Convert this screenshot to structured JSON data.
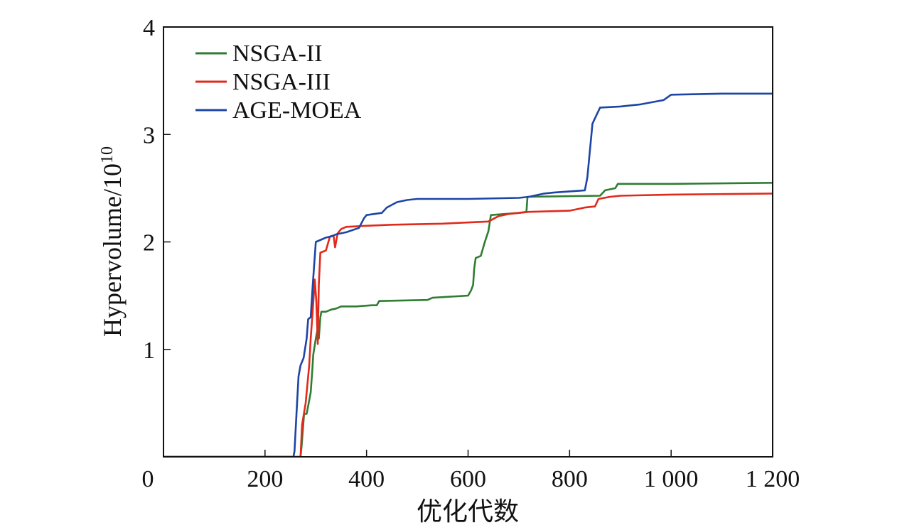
{
  "chart_data": {
    "type": "line",
    "title": "",
    "xlabel": "优化代数",
    "ylabel_base": "Hypervolume/10",
    "ylabel_exp": "10",
    "xlim": [
      0,
      1200
    ],
    "ylim": [
      0,
      4
    ],
    "xticks": [
      {
        "value": 0,
        "label": "0"
      },
      {
        "value": 200,
        "label": "200"
      },
      {
        "value": 400,
        "label": "400"
      },
      {
        "value": 600,
        "label": "600"
      },
      {
        "value": 800,
        "label": "800"
      },
      {
        "value": 1000,
        "label": "1 000"
      },
      {
        "value": 1200,
        "label": "1 200"
      }
    ],
    "yticks": [
      {
        "value": 1,
        "label": "1"
      },
      {
        "value": 2,
        "label": "2"
      },
      {
        "value": 3,
        "label": "3"
      },
      {
        "value": 4,
        "label": "4"
      }
    ],
    "grid": false,
    "legend_position": "top-left",
    "series": [
      {
        "name": "NSGA-II",
        "color": "#2e7d32",
        "points": [
          [
            0,
            0
          ],
          [
            270,
            0
          ],
          [
            272,
            0.1
          ],
          [
            277,
            0.4
          ],
          [
            282,
            0.4
          ],
          [
            286,
            0.5
          ],
          [
            290,
            0.6
          ],
          [
            293,
            0.8
          ],
          [
            295,
            0.95
          ],
          [
            300,
            1.1
          ],
          [
            304,
            1.2
          ],
          [
            306,
            1.1
          ],
          [
            309,
            1.3
          ],
          [
            311,
            1.35
          ],
          [
            320,
            1.35
          ],
          [
            330,
            1.37
          ],
          [
            340,
            1.38
          ],
          [
            350,
            1.4
          ],
          [
            380,
            1.4
          ],
          [
            410,
            1.41
          ],
          [
            420,
            1.41
          ],
          [
            425,
            1.45
          ],
          [
            520,
            1.46
          ],
          [
            530,
            1.48
          ],
          [
            600,
            1.5
          ],
          [
            606,
            1.55
          ],
          [
            610,
            1.6
          ],
          [
            612,
            1.75
          ],
          [
            615,
            1.85
          ],
          [
            625,
            1.87
          ],
          [
            633,
            2.0
          ],
          [
            640,
            2.1
          ],
          [
            645,
            2.25
          ],
          [
            700,
            2.27
          ],
          [
            715,
            2.28
          ],
          [
            717,
            2.42
          ],
          [
            860,
            2.43
          ],
          [
            870,
            2.48
          ],
          [
            890,
            2.5
          ],
          [
            895,
            2.54
          ],
          [
            1000,
            2.54
          ],
          [
            1200,
            2.55
          ]
        ]
      },
      {
        "name": "NSGA-III",
        "color": "#e02a1b",
        "points": [
          [
            0,
            0
          ],
          [
            270,
            0
          ],
          [
            273,
            0.3
          ],
          [
            280,
            0.5
          ],
          [
            287,
            0.85
          ],
          [
            290,
            1.1
          ],
          [
            293,
            1.3
          ],
          [
            296,
            1.5
          ],
          [
            298,
            1.65
          ],
          [
            301,
            1.45
          ],
          [
            304,
            1.05
          ],
          [
            306,
            1.6
          ],
          [
            309,
            1.9
          ],
          [
            320,
            1.92
          ],
          [
            328,
            2.05
          ],
          [
            335,
            2.06
          ],
          [
            338,
            1.95
          ],
          [
            343,
            2.08
          ],
          [
            350,
            2.12
          ],
          [
            360,
            2.14
          ],
          [
            400,
            2.15
          ],
          [
            450,
            2.16
          ],
          [
            550,
            2.17
          ],
          [
            640,
            2.19
          ],
          [
            660,
            2.24
          ],
          [
            680,
            2.26
          ],
          [
            700,
            2.27
          ],
          [
            720,
            2.28
          ],
          [
            800,
            2.29
          ],
          [
            830,
            2.32
          ],
          [
            850,
            2.33
          ],
          [
            857,
            2.4
          ],
          [
            880,
            2.42
          ],
          [
            900,
            2.43
          ],
          [
            1000,
            2.44
          ],
          [
            1200,
            2.45
          ]
        ]
      },
      {
        "name": "AGE-MOEA",
        "color": "#1c45a6",
        "points": [
          [
            0,
            0
          ],
          [
            256,
            0
          ],
          [
            258,
            0.05
          ],
          [
            262,
            0.4
          ],
          [
            266,
            0.75
          ],
          [
            270,
            0.85
          ],
          [
            276,
            0.92
          ],
          [
            282,
            1.1
          ],
          [
            285,
            1.28
          ],
          [
            290,
            1.3
          ],
          [
            294,
            1.6
          ],
          [
            300,
            2.0
          ],
          [
            310,
            2.02
          ],
          [
            320,
            2.04
          ],
          [
            330,
            2.05
          ],
          [
            340,
            2.07
          ],
          [
            360,
            2.09
          ],
          [
            385,
            2.13
          ],
          [
            395,
            2.22
          ],
          [
            400,
            2.25
          ],
          [
            430,
            2.27
          ],
          [
            440,
            2.32
          ],
          [
            460,
            2.37
          ],
          [
            480,
            2.39
          ],
          [
            500,
            2.4
          ],
          [
            600,
            2.4
          ],
          [
            700,
            2.41
          ],
          [
            720,
            2.42
          ],
          [
            750,
            2.45
          ],
          [
            770,
            2.46
          ],
          [
            830,
            2.48
          ],
          [
            835,
            2.6
          ],
          [
            845,
            3.1
          ],
          [
            850,
            3.15
          ],
          [
            860,
            3.25
          ],
          [
            900,
            3.26
          ],
          [
            940,
            3.28
          ],
          [
            985,
            3.32
          ],
          [
            1000,
            3.37
          ],
          [
            1100,
            3.38
          ],
          [
            1200,
            3.38
          ]
        ]
      }
    ]
  }
}
